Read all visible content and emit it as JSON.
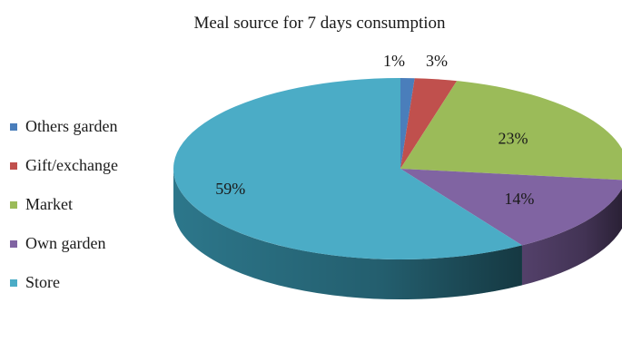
{
  "chart_data": {
    "type": "pie",
    "style": "3d",
    "title": "Meal source for 7 days consumption",
    "legend_position": "left",
    "categories": [
      "Others garden",
      "Gift/exchange",
      "Market",
      "Own garden",
      "Store"
    ],
    "values": [
      1,
      3,
      23,
      14,
      59
    ],
    "labels": [
      "1%",
      "3%",
      "23%",
      "14%",
      "59%"
    ],
    "colors": [
      "#4a7ebb",
      "#c0504d",
      "#9bbb59",
      "#8064a2",
      "#4bacc6"
    ],
    "side_colors": [
      "#2e5584",
      "#853532",
      "#6a823a",
      "#584470",
      "#2f7d92"
    ]
  }
}
